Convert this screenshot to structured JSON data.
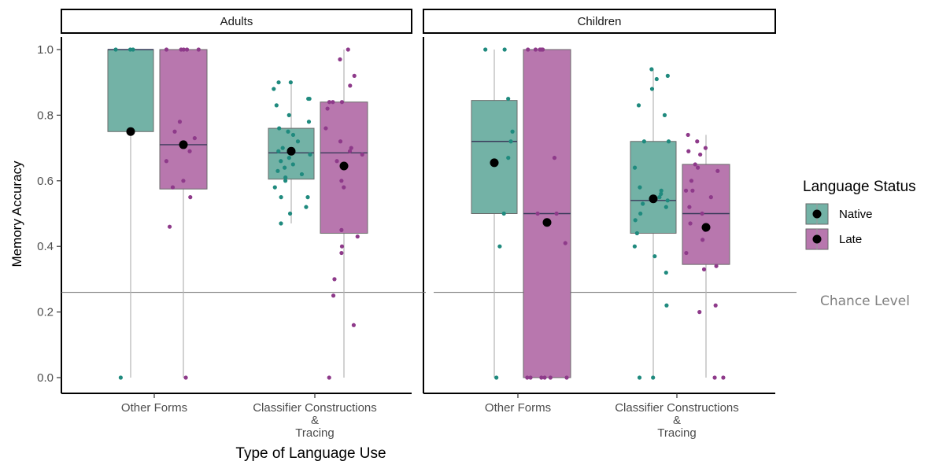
{
  "chart_data": {
    "type": "box",
    "facets": [
      "Adults",
      "Children"
    ],
    "categories": [
      "Other Forms",
      "Classifier Constructions\n&\nTracing"
    ],
    "xlabel": "Type of Language Use",
    "ylabel": "Memory Accuracy",
    "ylim": [
      0,
      1
    ],
    "yticks": [
      0.0,
      0.2,
      0.4,
      0.6,
      0.8,
      1.0
    ],
    "ytick_labels": [
      "0.0",
      "0.2",
      "0.4",
      "0.6",
      "0.8",
      "1.0"
    ],
    "legend": {
      "title": "Language Status",
      "entries": [
        "Native",
        "Late"
      ],
      "placement": "right"
    },
    "colors": {
      "Native": "#1f8a7e",
      "Late": "#8e3a8a",
      "Native_fill": "#73b2a6",
      "Late_fill": "#b877ae"
    },
    "reference_line": {
      "y": 0.26,
      "label": "Chance Level"
    },
    "series": [
      {
        "facet": "Adults",
        "category": "Other Forms",
        "group": "Native",
        "box": {
          "min": 0.0,
          "q1": 0.75,
          "median": 1.0,
          "q3": 1.0,
          "max": 1.0
        },
        "mean": 0.75,
        "points": [
          1.0,
          1.0,
          1.0,
          0.0
        ]
      },
      {
        "facet": "Adults",
        "category": "Other Forms",
        "group": "Late",
        "box": {
          "min": 0.0,
          "q1": 0.575,
          "median": 0.71,
          "q3": 1.0,
          "max": 1.0
        },
        "mean": 0.71,
        "points": [
          1.0,
          1.0,
          1.0,
          1.0,
          1.0,
          0.78,
          0.75,
          0.73,
          0.69,
          0.66,
          0.6,
          0.58,
          0.55,
          0.46,
          0.0
        ]
      },
      {
        "facet": "Adults",
        "category": "Classifier Constructions\n&\nTracing",
        "group": "Native",
        "box": {
          "min": 0.47,
          "q1": 0.605,
          "median": 0.685,
          "q3": 0.76,
          "max": 0.9
        },
        "mean": 0.69,
        "points": [
          0.9,
          0.9,
          0.88,
          0.85,
          0.85,
          0.83,
          0.8,
          0.78,
          0.76,
          0.75,
          0.74,
          0.72,
          0.7,
          0.69,
          0.68,
          0.67,
          0.66,
          0.65,
          0.64,
          0.63,
          0.62,
          0.61,
          0.6,
          0.58,
          0.55,
          0.55,
          0.52,
          0.5,
          0.47
        ]
      },
      {
        "facet": "Adults",
        "category": "Classifier Constructions\n&\nTracing",
        "group": "Late",
        "box": {
          "min": 0.0,
          "q1": 0.44,
          "median": 0.685,
          "q3": 0.84,
          "max": 1.0
        },
        "mean": 0.645,
        "points": [
          1.0,
          0.97,
          0.92,
          0.89,
          0.84,
          0.84,
          0.84,
          0.82,
          0.76,
          0.72,
          0.7,
          0.69,
          0.68,
          0.66,
          0.6,
          0.58,
          0.45,
          0.43,
          0.4,
          0.38,
          0.3,
          0.25,
          0.16,
          0.0
        ]
      },
      {
        "facet": "Children",
        "category": "Other Forms",
        "group": "Native",
        "box": {
          "min": 0.0,
          "q1": 0.5,
          "median": 0.72,
          "q3": 0.845,
          "max": 1.0
        },
        "mean": 0.655,
        "points": [
          1.0,
          1.0,
          0.85,
          0.75,
          0.72,
          0.67,
          0.5,
          0.4,
          0.0
        ]
      },
      {
        "facet": "Children",
        "category": "Other Forms",
        "group": "Late",
        "box": {
          "min": 0.0,
          "q1": 0.0,
          "median": 0.5,
          "q3": 1.0,
          "max": 1.0
        },
        "mean": 0.473,
        "points": [
          1.0,
          1.0,
          1.0,
          1.0,
          1.0,
          0.67,
          0.5,
          0.5,
          0.41,
          0.0,
          0.0,
          0.0,
          0.0,
          0.0,
          0.0
        ]
      },
      {
        "facet": "Children",
        "category": "Classifier Constructions\n&\nTracing",
        "group": "Native",
        "box": {
          "min": 0.0,
          "q1": 0.44,
          "median": 0.54,
          "q3": 0.72,
          "max": 0.94
        },
        "mean": 0.545,
        "points": [
          0.94,
          0.92,
          0.91,
          0.88,
          0.83,
          0.8,
          0.72,
          0.72,
          0.64,
          0.58,
          0.57,
          0.56,
          0.55,
          0.54,
          0.53,
          0.52,
          0.5,
          0.48,
          0.44,
          0.4,
          0.37,
          0.32,
          0.22,
          0.0,
          0.0
        ]
      },
      {
        "facet": "Children",
        "category": "Classifier Constructions\n&\nTracing",
        "group": "Late",
        "box": {
          "min": 0.0,
          "q1": 0.345,
          "median": 0.5,
          "q3": 0.65,
          "max": 0.74
        },
        "mean": 0.458,
        "points": [
          0.74,
          0.72,
          0.7,
          0.69,
          0.68,
          0.65,
          0.64,
          0.63,
          0.6,
          0.57,
          0.57,
          0.55,
          0.52,
          0.5,
          0.47,
          0.45,
          0.42,
          0.38,
          0.34,
          0.33,
          0.22,
          0.2,
          0.0,
          0.0
        ]
      }
    ]
  }
}
